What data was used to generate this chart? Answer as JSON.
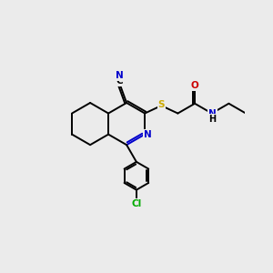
{
  "background_color": "#ebebeb",
  "atom_colors": {
    "C": "#000000",
    "N": "#0000cc",
    "O": "#cc0000",
    "S": "#ccaa00",
    "Cl": "#00aa00",
    "H": "#000000"
  },
  "figsize": [
    3.0,
    3.0
  ],
  "dpi": 100,
  "bond_lw": 1.4,
  "font_size": 7.5
}
